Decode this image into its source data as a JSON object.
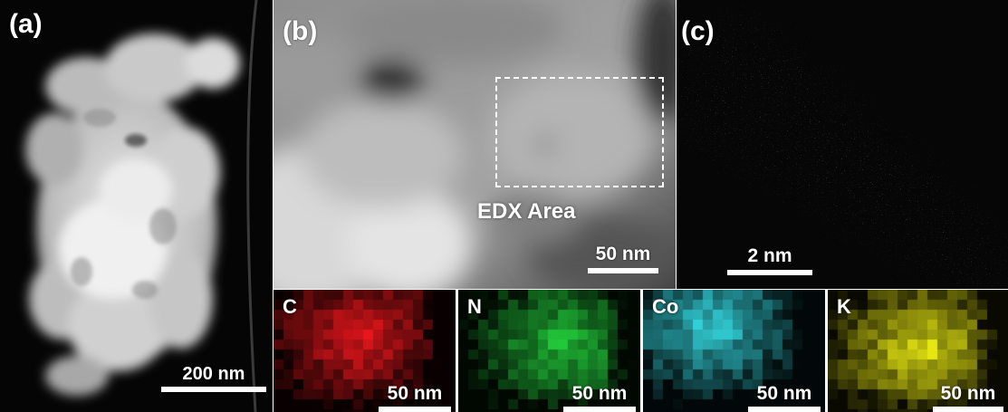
{
  "figure": {
    "panel_a": {
      "label": "(a)",
      "scale_bar": "200 nm"
    },
    "panel_b": {
      "label": "(b)",
      "scale_bar": "50 nm",
      "region_label": "EDX Area"
    },
    "panel_c": {
      "label": "(c)",
      "scale_bar": "2 nm"
    },
    "maps": [
      {
        "element": "C",
        "scale_bar": "50 nm",
        "color": "#e8161c"
      },
      {
        "element": "N",
        "scale_bar": "50 nm",
        "color": "#22c83a"
      },
      {
        "element": "Co",
        "scale_bar": "50 nm",
        "color": "#33d4dc"
      },
      {
        "element": "K",
        "scale_bar": "50 nm",
        "color": "#e6e612"
      }
    ]
  }
}
